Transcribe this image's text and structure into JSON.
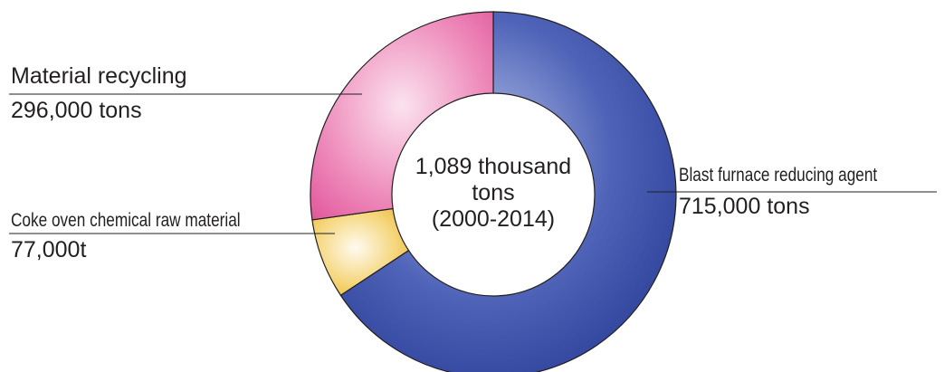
{
  "chart_data": {
    "type": "pie",
    "donut": true,
    "center_label": [
      "1,089 thousand",
      "tons",
      "(2000-2014)"
    ],
    "unit": "thousand tons",
    "slices": [
      {
        "name": "Blast furnace reducing agent",
        "value": 715,
        "value_label": "715,000 tons",
        "color": "#3a4fa8"
      },
      {
        "name": "Coke oven chemical raw material",
        "value": 77,
        "value_label": "77,000t",
        "color": "#f0c040"
      },
      {
        "name": "Material recycling",
        "value": 296,
        "value_label": "296,000 tons",
        "color": "#e25c9e"
      }
    ]
  }
}
